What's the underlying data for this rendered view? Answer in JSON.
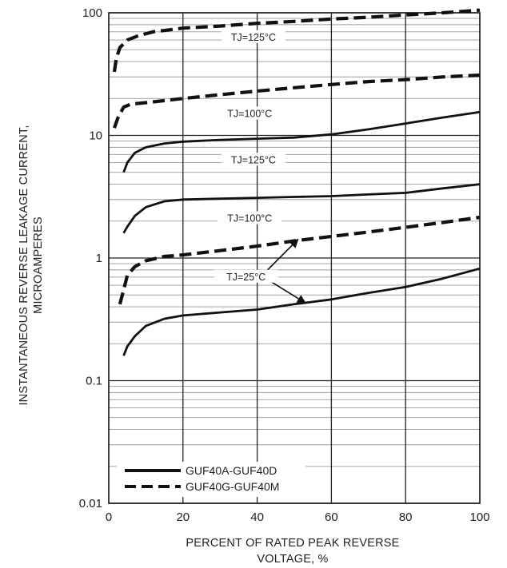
{
  "chart_data": {
    "type": "line",
    "title": "",
    "xlabel": [
      "PERCENT OF RATED PEAK REVERSE",
      "VOLTAGE, %"
    ],
    "ylabel": [
      "INSTANTANEOUS REVERSE LEAKAGE CURRENT,",
      "MICROAMPERES"
    ],
    "xlim": [
      0,
      100
    ],
    "ylim": [
      0.01,
      100
    ],
    "yscale": "log",
    "grid": true,
    "x_ticks": [
      0,
      20,
      40,
      60,
      80,
      100
    ],
    "x_tick_labels": [
      "0",
      "20",
      "40",
      "60",
      "80",
      "100"
    ],
    "y_ticks": [
      0.01,
      0.1,
      1,
      10,
      100
    ],
    "y_tick_labels": [
      "0.01",
      "0.1",
      "1",
      "10",
      "100"
    ],
    "legend": {
      "placement": "bottom-left",
      "entries": [
        {
          "label": "GUF40A-GUF40D",
          "style": "solid"
        },
        {
          "label": "GUF40G-GUF40M",
          "style": "dashed"
        }
      ]
    },
    "series": [
      {
        "group": "GUF40G-GUF40M",
        "style": "dashed",
        "label": "TJ=125°C",
        "points": [
          [
            1.5,
            33
          ],
          [
            2,
            42
          ],
          [
            3,
            52
          ],
          [
            5,
            60
          ],
          [
            8,
            65
          ],
          [
            12,
            70
          ],
          [
            20,
            75
          ],
          [
            30,
            78
          ],
          [
            40,
            82
          ],
          [
            50,
            85
          ],
          [
            60,
            89
          ],
          [
            70,
            92
          ],
          [
            80,
            96
          ],
          [
            90,
            100
          ],
          [
            100,
            105
          ]
        ]
      },
      {
        "group": "GUF40G-GUF40M",
        "style": "dashed",
        "label": "TJ=100°C",
        "points": [
          [
            1.5,
            11.5
          ],
          [
            2.5,
            14
          ],
          [
            4,
            17
          ],
          [
            6,
            18
          ],
          [
            10,
            18.5
          ],
          [
            20,
            20
          ],
          [
            30,
            21.5
          ],
          [
            40,
            23
          ],
          [
            50,
            24.5
          ],
          [
            60,
            26
          ],
          [
            70,
            27.5
          ],
          [
            80,
            28.5
          ],
          [
            90,
            30
          ],
          [
            100,
            31
          ]
        ]
      },
      {
        "group": "GUF40A-GUF40D",
        "style": "solid",
        "label": "TJ=125°C",
        "points": [
          [
            4,
            5
          ],
          [
            5,
            6
          ],
          [
            7,
            7.2
          ],
          [
            10,
            8
          ],
          [
            15,
            8.6
          ],
          [
            20,
            8.9
          ],
          [
            30,
            9.2
          ],
          [
            40,
            9.4
          ],
          [
            50,
            9.6
          ],
          [
            60,
            10.2
          ],
          [
            70,
            11.2
          ],
          [
            80,
            12.5
          ],
          [
            90,
            14
          ],
          [
            100,
            15.5
          ]
        ]
      },
      {
        "group": "GUF40A-GUF40D",
        "style": "solid",
        "label": "TJ=100°C",
        "points": [
          [
            4,
            1.6
          ],
          [
            5,
            1.8
          ],
          [
            7,
            2.2
          ],
          [
            10,
            2.6
          ],
          [
            15,
            2.9
          ],
          [
            20,
            3.0
          ],
          [
            30,
            3.05
          ],
          [
            40,
            3.1
          ],
          [
            50,
            3.15
          ],
          [
            60,
            3.2
          ],
          [
            70,
            3.3
          ],
          [
            80,
            3.4
          ],
          [
            90,
            3.7
          ],
          [
            100,
            4.0
          ]
        ]
      },
      {
        "group": "GUF40G-GUF40M",
        "style": "dashed",
        "label": "TJ=25°C",
        "points": [
          [
            3,
            0.42
          ],
          [
            4,
            0.55
          ],
          [
            5,
            0.72
          ],
          [
            7,
            0.85
          ],
          [
            10,
            0.95
          ],
          [
            15,
            1.03
          ],
          [
            20,
            1.06
          ],
          [
            30,
            1.15
          ],
          [
            40,
            1.25
          ],
          [
            50,
            1.38
          ],
          [
            60,
            1.5
          ],
          [
            70,
            1.63
          ],
          [
            80,
            1.78
          ],
          [
            90,
            1.95
          ],
          [
            100,
            2.15
          ]
        ]
      },
      {
        "group": "GUF40A-GUF40D",
        "style": "solid",
        "label": "TJ=25°C",
        "points": [
          [
            4,
            0.16
          ],
          [
            5,
            0.19
          ],
          [
            7,
            0.23
          ],
          [
            10,
            0.28
          ],
          [
            15,
            0.32
          ],
          [
            20,
            0.34
          ],
          [
            30,
            0.36
          ],
          [
            40,
            0.38
          ],
          [
            50,
            0.42
          ],
          [
            60,
            0.46
          ],
          [
            70,
            0.52
          ],
          [
            80,
            0.58
          ],
          [
            90,
            0.68
          ],
          [
            100,
            0.82
          ]
        ]
      }
    ],
    "annotations": [
      {
        "text": "TJ=125°C",
        "series_index": 0,
        "x": 39,
        "y": 63
      },
      {
        "text": "TJ=100°C",
        "series_index": 1,
        "x": 38,
        "y": 15
      },
      {
        "text": "TJ=125°C",
        "series_index": 2,
        "x": 39,
        "y": 6.3
      },
      {
        "text": "TJ=100°C",
        "series_index": 3,
        "x": 38,
        "y": 2.1
      },
      {
        "text": "TJ=25°C",
        "x": 37,
        "y": 0.7,
        "arrows_to": [
          [
            51,
            1.42
          ],
          [
            53,
            0.43
          ]
        ]
      }
    ]
  }
}
